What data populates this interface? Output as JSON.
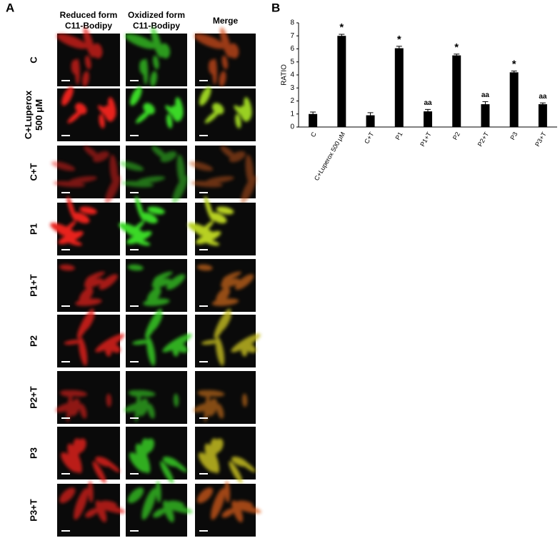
{
  "panel_a": {
    "label": "A",
    "column_headers": [
      [
        "Reduced form",
        "C11-Bodipy"
      ],
      [
        "Oxidized form",
        "C11-Bodipy"
      ],
      [
        "Merge"
      ]
    ],
    "row_labels": [
      [
        "C"
      ],
      [
        "C+Luperox",
        "500 μM"
      ],
      [
        "C+T"
      ],
      [
        "P1"
      ],
      [
        "P1+T"
      ],
      [
        "P2"
      ],
      [
        "P2+T"
      ],
      [
        "P3"
      ],
      [
        "P3+T"
      ]
    ]
  },
  "chart_data": {
    "type": "bar",
    "panel_label": "B",
    "y_label": "RATIO",
    "categories": [
      "C",
      "C+Luperox 500 μM",
      "C+T",
      "P1",
      "P1+T",
      "P2",
      "P2+T",
      "P3",
      "P3+T"
    ],
    "values": [
      1.0,
      7.0,
      0.9,
      6.05,
      1.2,
      5.5,
      1.75,
      4.2,
      1.75
    ],
    "errors": [
      0.15,
      0.12,
      0.2,
      0.15,
      0.15,
      0.1,
      0.2,
      0.1,
      0.1
    ],
    "annotations": [
      null,
      "*",
      null,
      "*",
      "aa",
      "*",
      "aa",
      "*",
      "aa"
    ],
    "color": "#000000",
    "ylim": [
      0,
      8
    ],
    "yticks": [
      0,
      1,
      2,
      3,
      4,
      5,
      6,
      7,
      8
    ]
  }
}
